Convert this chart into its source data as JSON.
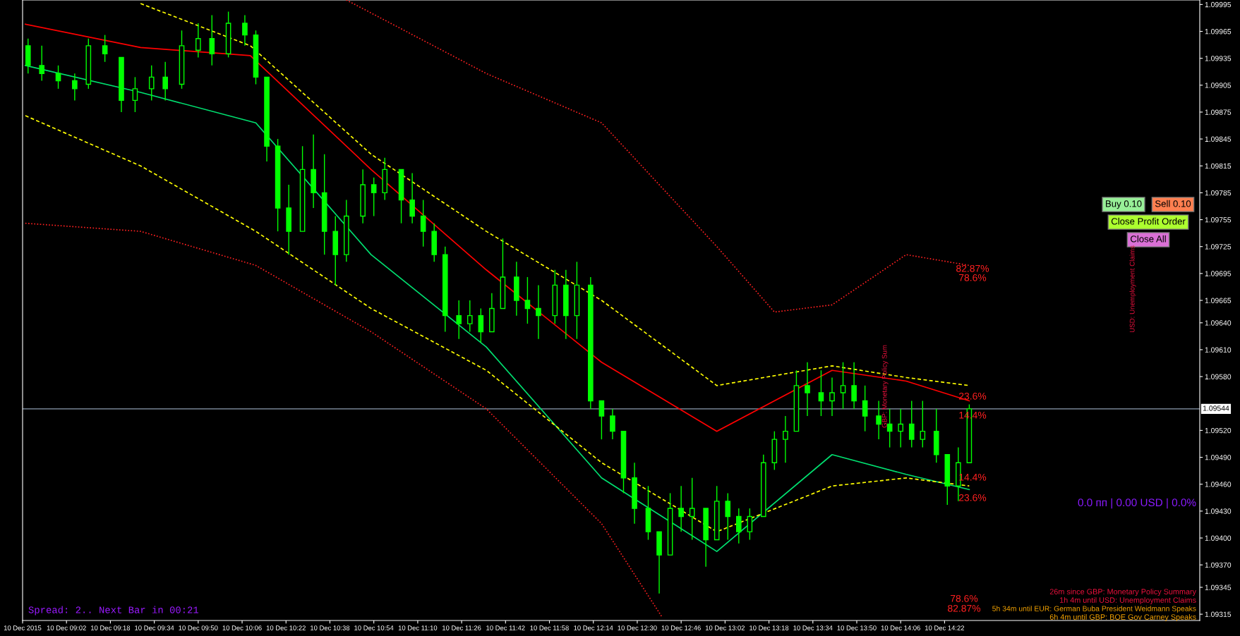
{
  "chart_data": {
    "type": "candlestick",
    "x": [
      "2015-12-10T08:48",
      "2015-12-10T08:53",
      "2015-12-10T08:59",
      "2015-12-10T09:05",
      "2015-12-10T09:10",
      "2015-12-10T09:16",
      "2015-12-10T09:22",
      "2015-12-10T09:27",
      "2015-12-10T09:33",
      "2015-12-10T09:38",
      "2015-12-10T09:44",
      "2015-12-10T09:50",
      "2015-12-10T09:55",
      "2015-12-10T10:01",
      "2015-12-10T10:07",
      "2015-12-10T10:11",
      "2015-12-10T10:15",
      "2015-12-10T10:19",
      "2015-12-10T10:23",
      "2015-12-10T10:28",
      "2015-12-10T10:32",
      "2015-12-10T10:36",
      "2015-12-10T10:40",
      "2015-12-10T10:44",
      "2015-12-10T10:50",
      "2015-12-10T10:54",
      "2015-12-10T10:58",
      "2015-12-10T11:04",
      "2015-12-10T11:08",
      "2015-12-10T11:12",
      "2015-12-10T11:16",
      "2015-12-10T11:20",
      "2015-12-10T11:25",
      "2015-12-10T11:29",
      "2015-12-10T11:33",
      "2015-12-10T11:37",
      "2015-12-10T11:41",
      "2015-12-10T11:46",
      "2015-12-10T11:50",
      "2015-12-10T11:54",
      "2015-12-10T12:00",
      "2015-12-10T12:04",
      "2015-12-10T12:08",
      "2015-12-10T12:13",
      "2015-12-10T12:17",
      "2015-12-10T12:21",
      "2015-12-10T12:25",
      "2015-12-10T12:29",
      "2015-12-10T12:34",
      "2015-12-10T12:38",
      "2015-12-10T12:42",
      "2015-12-10T12:46",
      "2015-12-10T12:50",
      "2015-12-10T12:55",
      "2015-12-10T12:59",
      "2015-12-10T13:03",
      "2015-12-10T13:07",
      "2015-12-10T13:11",
      "2015-12-10T13:16",
      "2015-12-10T13:20",
      "2015-12-10T13:24",
      "2015-12-10T13:28",
      "2015-12-10T13:32",
      "2015-12-10T13:37",
      "2015-12-10T13:41",
      "2015-12-10T13:45",
      "2015-12-10T13:49",
      "2015-12-10T13:53",
      "2015-12-10T13:58",
      "2015-12-10T14:02",
      "2015-12-10T14:06",
      "2015-12-10T14:10",
      "2015-12-10T14:14",
      "2015-12-10T14:19",
      "2015-12-10T14:23",
      "2015-12-10T14:27",
      "2015-12-10T14:31"
    ],
    "ohlc": [
      [
        1.09949,
        1.09957,
        1.09918,
        1.09927
      ],
      [
        1.09927,
        1.09949,
        1.0991,
        1.09918
      ],
      [
        1.09918,
        1.09927,
        1.09901,
        1.0991
      ],
      [
        1.0991,
        1.09918,
        1.09888,
        1.09901
      ],
      [
        1.09906,
        1.09957,
        1.09901,
        1.09949
      ],
      [
        1.09949,
        1.09961,
        1.09931,
        1.0994
      ],
      [
        1.09936,
        1.09936,
        1.09875,
        1.09888
      ],
      [
        1.09888,
        1.09914,
        1.09875,
        1.09901
      ],
      [
        1.09901,
        1.09927,
        1.09888,
        1.09914
      ],
      [
        1.09914,
        1.09931,
        1.09888,
        1.09901
      ],
      [
        1.09906,
        1.09966,
        1.09901,
        1.09949
      ],
      [
        1.09944,
        1.09974,
        1.09936,
        1.09957
      ],
      [
        1.09957,
        1.09983,
        1.09927,
        1.0994
      ],
      [
        1.0994,
        1.09987,
        1.09936,
        1.09974
      ],
      [
        1.09974,
        1.09983,
        1.09949,
        1.09961
      ],
      [
        1.09961,
        1.09966,
        1.09906,
        1.09914
      ],
      [
        1.09914,
        1.09914,
        1.0982,
        1.09837
      ],
      [
        1.09837,
        1.09845,
        1.09742,
        1.09768
      ],
      [
        1.09768,
        1.09794,
        1.09716,
        1.09742
      ],
      [
        1.09742,
        1.09837,
        1.09742,
        1.09811
      ],
      [
        1.09811,
        1.0985,
        1.09768,
        1.09785
      ],
      [
        1.09785,
        1.09828,
        1.09716,
        1.09742
      ],
      [
        1.09742,
        1.09759,
        1.09682,
        1.09716
      ],
      [
        1.09716,
        1.09777,
        1.09708,
        1.09759
      ],
      [
        1.09759,
        1.09811,
        1.09751,
        1.09794
      ],
      [
        1.09794,
        1.09802,
        1.09759,
        1.09785
      ],
      [
        1.09785,
        1.09824,
        1.09777,
        1.09811
      ],
      [
        1.09811,
        1.09811,
        1.09751,
        1.09777
      ],
      [
        1.09777,
        1.09807,
        1.09751,
        1.09759
      ],
      [
        1.09759,
        1.09777,
        1.09725,
        1.09742
      ],
      [
        1.09742,
        1.09751,
        1.09708,
        1.09716
      ],
      [
        1.09716,
        1.09725,
        1.0963,
        1.09648
      ],
      [
        1.09648,
        1.09665,
        1.09622,
        1.09639
      ],
      [
        1.09639,
        1.09665,
        1.0963,
        1.09648
      ],
      [
        1.09648,
        1.09656,
        1.09618,
        1.0963
      ],
      [
        1.0963,
        1.09673,
        1.0963,
        1.09656
      ],
      [
        1.09656,
        1.09734,
        1.09656,
        1.09691
      ],
      [
        1.09691,
        1.09708,
        1.09648,
        1.09665
      ],
      [
        1.09665,
        1.09691,
        1.09639,
        1.09656
      ],
      [
        1.09656,
        1.09682,
        1.09622,
        1.09648
      ],
      [
        1.09648,
        1.09699,
        1.09639,
        1.09682
      ],
      [
        1.09682,
        1.09699,
        1.09622,
        1.09648
      ],
      [
        1.09648,
        1.09708,
        1.09622,
        1.09682
      ],
      [
        1.09682,
        1.09691,
        1.09544,
        1.09553
      ],
      [
        1.09553,
        1.09553,
        1.0951,
        1.09536
      ],
      [
        1.09536,
        1.09544,
        1.0951,
        1.09519
      ],
      [
        1.09519,
        1.09519,
        1.0945,
        1.09467
      ],
      [
        1.09467,
        1.09484,
        1.09416,
        1.09433
      ],
      [
        1.09433,
        1.09458,
        1.09398,
        1.09407
      ],
      [
        1.09407,
        1.09407,
        1.09338,
        1.09381
      ],
      [
        1.09381,
        1.0945,
        1.09381,
        1.09433
      ],
      [
        1.09433,
        1.09458,
        1.09407,
        1.09424
      ],
      [
        1.09424,
        1.09467,
        1.09398,
        1.09433
      ],
      [
        1.09433,
        1.09433,
        1.09368,
        1.09398
      ],
      [
        1.09398,
        1.09458,
        1.09398,
        1.09441
      ],
      [
        1.09441,
        1.0945,
        1.09398,
        1.09424
      ],
      [
        1.09424,
        1.09433,
        1.09394,
        1.09407
      ],
      [
        1.09407,
        1.09433,
        1.09398,
        1.09424
      ],
      [
        1.09424,
        1.09493,
        1.09424,
        1.09484
      ],
      [
        1.09484,
        1.09519,
        1.09476,
        1.0951
      ],
      [
        1.0951,
        1.09536,
        1.09484,
        1.09519
      ],
      [
        1.09519,
        1.09587,
        1.09519,
        1.0957
      ],
      [
        1.0957,
        1.09596,
        1.09536,
        1.09562
      ],
      [
        1.09562,
        1.09587,
        1.09536,
        1.09553
      ],
      [
        1.09553,
        1.09579,
        1.09536,
        1.09562
      ],
      [
        1.09562,
        1.09596,
        1.09544,
        1.0957
      ],
      [
        1.0957,
        1.09596,
        1.09544,
        1.09553
      ],
      [
        1.09553,
        1.0957,
        1.09519,
        1.09536
      ],
      [
        1.09536,
        1.09553,
        1.0951,
        1.09527
      ],
      [
        1.09527,
        1.09544,
        1.09501,
        1.09519
      ],
      [
        1.09519,
        1.09544,
        1.09501,
        1.09527
      ],
      [
        1.09527,
        1.09553,
        1.09501,
        1.0951
      ],
      [
        1.0951,
        1.09553,
        1.09501,
        1.09519
      ],
      [
        1.09519,
        1.09544,
        1.09484,
        1.09493
      ],
      [
        1.09493,
        1.09493,
        1.09437,
        1.09458
      ],
      [
        1.09458,
        1.09501,
        1.09441,
        1.09484
      ],
      [
        1.09484,
        1.09549,
        1.09484,
        1.09544
      ]
    ],
    "color": "#00ff00",
    "series": [
      {
        "type": "line",
        "color": "#ff0000",
        "line_style": "solid",
        "x": [
          "2015-12-10T08:47",
          "2015-12-10T09:29",
          "2015-12-10T10:09",
          "2015-12-10T10:53",
          "2015-12-10T11:35",
          "2015-12-10T12:17",
          "2015-12-10T12:59",
          "2015-12-10T13:41",
          "2015-12-10T14:08",
          "2015-12-10T14:31"
        ],
        "values": [
          1.09973,
          1.09947,
          1.09938,
          1.09811,
          1.09699,
          1.09596,
          1.09519,
          1.09587,
          1.09575,
          1.09553
        ]
      },
      {
        "type": "line",
        "color": "#00e070",
        "line_style": "solid",
        "x": [
          "2015-12-10T08:47",
          "2015-12-10T09:29",
          "2015-12-10T10:11",
          "2015-12-10T10:53",
          "2015-12-10T11:35",
          "2015-12-10T12:17",
          "2015-12-10T12:59",
          "2015-12-10T13:41",
          "2015-12-10T14:08",
          "2015-12-10T14:31"
        ],
        "values": [
          1.09927,
          1.09897,
          1.09863,
          1.09716,
          1.09613,
          1.09467,
          1.09385,
          1.09493,
          1.09471,
          1.09454
        ]
      },
      {
        "type": "line",
        "color": "#ffff00",
        "line_style": "dashed",
        "x": [
          "2015-12-10T09:29",
          "2015-12-10T10:09",
          "2015-12-10T10:53",
          "2015-12-10T11:35",
          "2015-12-10T12:17",
          "2015-12-10T12:59",
          "2015-12-10T13:41",
          "2015-12-10T14:08",
          "2015-12-10T14:31"
        ],
        "values": [
          1.09996,
          1.09949,
          1.09828,
          1.09742,
          1.09665,
          1.0957,
          1.09592,
          1.09579,
          1.0957
        ]
      },
      {
        "type": "line",
        "color": "#ffff00",
        "line_style": "dashed",
        "x": [
          "2015-12-10T08:47",
          "2015-12-10T09:29",
          "2015-12-10T10:11",
          "2015-12-10T10:53",
          "2015-12-10T11:35",
          "2015-12-10T12:17",
          "2015-12-10T12:59",
          "2015-12-10T13:41",
          "2015-12-10T14:08",
          "2015-12-10T14:31"
        ],
        "values": [
          1.09871,
          1.09815,
          1.09742,
          1.09656,
          1.09587,
          1.09484,
          1.09407,
          1.09458,
          1.09467,
          1.09458
        ]
      },
      {
        "type": "line",
        "color": "#ff2020",
        "line_style": "dotted",
        "x": [
          "2015-12-10T10:44",
          "2015-12-10T11:35",
          "2015-12-10T12:17",
          "2015-12-10T12:59",
          "2015-12-10T13:20",
          "2015-12-10T13:41",
          "2015-12-10T14:08",
          "2015-12-10T14:31"
        ],
        "values": [
          1.1,
          1.09918,
          1.09863,
          1.09725,
          1.09652,
          1.0966,
          1.09716,
          1.09704
        ]
      },
      {
        "type": "line",
        "color": "#ff2020",
        "line_style": "dotted",
        "x": [
          "2015-12-10T08:47",
          "2015-12-10T09:29",
          "2015-12-10T10:11",
          "2015-12-10T10:53",
          "2015-12-10T11:35",
          "2015-12-10T12:17",
          "2015-12-10T12:39"
        ],
        "values": [
          1.09751,
          1.09742,
          1.09704,
          1.0963,
          1.09544,
          1.09416,
          1.09312
        ]
      }
    ],
    "xlim": [
      "2015-12-10T08:46",
      "2015-12-10T15:55"
    ],
    "xticks": [
      {
        "value": "2015-12-10T08:46",
        "label": "10 Dec 2015"
      },
      {
        "value": "2015-12-10T09:02",
        "label": "10 Dec 09:02"
      },
      {
        "value": "2015-12-10T09:18",
        "label": "10 Dec 09:18"
      },
      {
        "value": "2015-12-10T09:34",
        "label": "10 Dec 09:34"
      },
      {
        "value": "2015-12-10T09:50",
        "label": "10 Dec 09:50"
      },
      {
        "value": "2015-12-10T10:06",
        "label": "10 Dec 10:06"
      },
      {
        "value": "2015-12-10T10:22",
        "label": "10 Dec 10:22"
      },
      {
        "value": "2015-12-10T10:38",
        "label": "10 Dec 10:38"
      },
      {
        "value": "2015-12-10T10:54",
        "label": "10 Dec 10:54"
      },
      {
        "value": "2015-12-10T11:10",
        "label": "10 Dec 11:10"
      },
      {
        "value": "2015-12-10T11:26",
        "label": "10 Dec 11:26"
      },
      {
        "value": "2015-12-10T11:42",
        "label": "10 Dec 11:42"
      },
      {
        "value": "2015-12-10T11:58",
        "label": "10 Dec 11:58"
      },
      {
        "value": "2015-12-10T12:14",
        "label": "10 Dec 12:14"
      },
      {
        "value": "2015-12-10T12:30",
        "label": "10 Dec 12:30"
      },
      {
        "value": "2015-12-10T12:46",
        "label": "10 Dec 12:46"
      },
      {
        "value": "2015-12-10T13:02",
        "label": "10 Dec 13:02"
      },
      {
        "value": "2015-12-10T13:18",
        "label": "10 Dec 13:18"
      },
      {
        "value": "2015-12-10T13:34",
        "label": "10 Dec 13:34"
      },
      {
        "value": "2015-12-10T13:50",
        "label": "10 Dec 13:50"
      },
      {
        "value": "2015-12-10T14:06",
        "label": "10 Dec 14:06"
      },
      {
        "value": "2015-12-10T14:22",
        "label": "10 Dec 14:22"
      }
    ],
    "ylim": [
      1.09308,
      1.1
    ],
    "yticks": [
      {
        "value": 1.09995,
        "label": "1.09995"
      },
      {
        "value": 1.09965,
        "label": "1.09965"
      },
      {
        "value": 1.09935,
        "label": "1.09935"
      },
      {
        "value": 1.09905,
        "label": "1.09905"
      },
      {
        "value": 1.09875,
        "label": "1.09875"
      },
      {
        "value": 1.09845,
        "label": "1.09845"
      },
      {
        "value": 1.09815,
        "label": "1.09815"
      },
      {
        "value": 1.09785,
        "label": "1.09785"
      },
      {
        "value": 1.09755,
        "label": "1.09755"
      },
      {
        "value": 1.09725,
        "label": "1.09725"
      },
      {
        "value": 1.09695,
        "label": "1.09695"
      },
      {
        "value": 1.09665,
        "label": "1.09665"
      },
      {
        "value": 1.0964,
        "label": "1.09640"
      },
      {
        "value": 1.0961,
        "label": "1.09610"
      },
      {
        "value": 1.0958,
        "label": "1.09580"
      },
      {
        "value": 1.0952,
        "label": "1.09520"
      },
      {
        "value": 1.0949,
        "label": "1.09490"
      },
      {
        "value": 1.0946,
        "label": "1.09460"
      },
      {
        "value": 1.0943,
        "label": "1.09430"
      },
      {
        "value": 1.094,
        "label": "1.09400"
      },
      {
        "value": 1.0937,
        "label": "1.09370"
      },
      {
        "value": 1.09345,
        "label": "1.09345"
      },
      {
        "value": 1.09315,
        "label": "1.09315"
      }
    ],
    "ref_lines": [
      {
        "axis": "y",
        "value": 1.09544,
        "label": "1.09544",
        "color": "#8c9cb0"
      }
    ],
    "annotations": [
      "Spread: 2.. Next Bar in 00:21",
      "26m since GBP: Monetary Policy Summary",
      "1h 4m until USD: Unemployment Claims",
      "5h 34m until EUR: German Buba President Weidmann Speaks",
      "6h 4m until GBP: BOE Gov Carney Speaks",
      "0.0 пп | 0.00 USD | 0.0%",
      "Buy 0.10",
      "Sell 0.10",
      "Close Profit Order",
      "Close All",
      "USD: Unemployment Claims",
      "GBP: Monetary Policy Sum",
      "82.87%",
      "78.6%",
      "23.6%",
      "14.4%",
      "14.4%",
      "23.6%",
      "78.6%",
      "82.87%"
    ],
    "grid": false,
    "legend": false
  }
}
